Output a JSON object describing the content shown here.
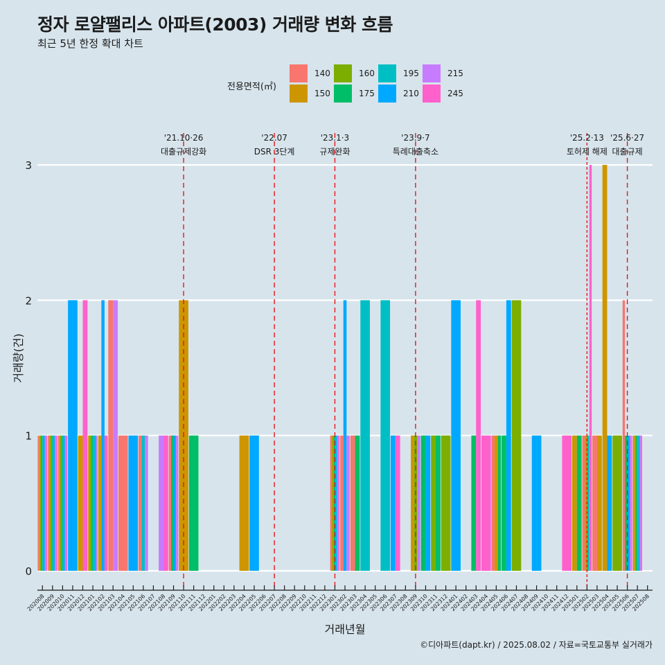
{
  "title": "정자 로얄팰리스 아파트(2003) 거래량 변화 흐름",
  "subtitle": "최근 5년 한정 확대 차트",
  "caption": "©디아파트(dapt.kr) / 2025.08.02 / 자료=국토교통부 실거래가",
  "legend": {
    "title": "전용면적(㎡)",
    "items": [
      {
        "key": "140",
        "color": "#F8766D"
      },
      {
        "key": "150",
        "color": "#CD9600"
      },
      {
        "key": "160",
        "color": "#7CAE00"
      },
      {
        "key": "175",
        "color": "#00BE67"
      },
      {
        "key": "195",
        "color": "#00BFC4"
      },
      {
        "key": "210",
        "color": "#00A9FF"
      },
      {
        "key": "215",
        "color": "#C77CFF"
      },
      {
        "key": "245",
        "color": "#FF61CC"
      }
    ]
  },
  "chart_data": {
    "type": "bar",
    "xlabel": "거래년월",
    "ylabel": "거래량(건)",
    "ylim": [
      0,
      3
    ],
    "yticks": [
      0,
      1,
      2,
      3
    ],
    "grid": true,
    "legend_position": "top",
    "categories": [
      "202008",
      "202009",
      "202010",
      "202011",
      "202012",
      "202101",
      "202102",
      "202103",
      "202104",
      "202105",
      "202106",
      "202107",
      "202108",
      "202109",
      "202110",
      "202111",
      "202112",
      "202201",
      "202202",
      "202203",
      "202204",
      "202205",
      "202206",
      "202207",
      "202208",
      "202209",
      "202210",
      "202211",
      "202212",
      "202301",
      "202302",
      "202303",
      "202304",
      "202305",
      "202306",
      "202307",
      "202308",
      "202309",
      "202310",
      "202311",
      "202312",
      "202401",
      "202402",
      "202403",
      "202404",
      "202405",
      "202406",
      "202407",
      "202408",
      "202409",
      "202410",
      "202411",
      "202412",
      "202501",
      "202502",
      "202503",
      "202504",
      "202505",
      "202506",
      "202507",
      "202508"
    ],
    "bars": [
      {
        "month": "202008",
        "values": [
          [
            "140",
            1
          ],
          [
            "150",
            1
          ],
          [
            "160",
            1
          ],
          [
            "175",
            1
          ],
          [
            "195",
            1
          ],
          [
            "210",
            1
          ],
          [
            "215",
            1
          ],
          [
            "245",
            1
          ]
        ]
      },
      {
        "month": "202009",
        "values": [
          [
            "140",
            1
          ],
          [
            "150",
            1
          ],
          [
            "160",
            1
          ],
          [
            "175",
            1
          ],
          [
            "195",
            1
          ],
          [
            "210",
            1
          ],
          [
            "215",
            1
          ],
          [
            "245",
            1
          ]
        ]
      },
      {
        "month": "202010",
        "values": [
          [
            "140",
            1
          ],
          [
            "150",
            1
          ],
          [
            "160",
            1
          ],
          [
            "175",
            1
          ],
          [
            "195",
            1
          ],
          [
            "210",
            1
          ],
          [
            "215",
            1
          ],
          [
            "245",
            1
          ]
        ]
      },
      {
        "month": "202011",
        "values": [
          [
            "210",
            2
          ]
        ]
      },
      {
        "month": "202012",
        "values": [
          [
            "150",
            1
          ],
          [
            "245",
            2
          ]
        ]
      },
      {
        "month": "202101",
        "values": [
          [
            "150",
            1
          ],
          [
            "160",
            1
          ],
          [
            "175",
            1
          ],
          [
            "195",
            1
          ],
          [
            "210",
            1
          ],
          [
            "215",
            1
          ]
        ]
      },
      {
        "month": "202102",
        "values": [
          [
            "150",
            1
          ],
          [
            "210",
            2
          ],
          [
            "245",
            1
          ]
        ]
      },
      {
        "month": "202103",
        "values": [
          [
            "140",
            2
          ],
          [
            "215",
            2
          ]
        ]
      },
      {
        "month": "202104",
        "values": [
          [
            "140",
            1
          ]
        ]
      },
      {
        "month": "202105",
        "values": [
          [
            "210",
            1
          ]
        ]
      },
      {
        "month": "202106",
        "values": [
          [
            "140",
            1
          ],
          [
            "195",
            1
          ],
          [
            "215",
            1
          ]
        ]
      },
      {
        "month": "202108",
        "values": [
          [
            "215",
            1
          ],
          [
            "245",
            1
          ]
        ]
      },
      {
        "month": "202109",
        "values": [
          [
            "140",
            1
          ],
          [
            "175",
            1
          ],
          [
            "210",
            1
          ],
          [
            "215",
            1
          ]
        ]
      },
      {
        "month": "202110",
        "values": [
          [
            "150",
            2
          ]
        ]
      },
      {
        "month": "202111",
        "values": [
          [
            "175",
            1
          ]
        ]
      },
      {
        "month": "202204",
        "values": [
          [
            "150",
            1
          ]
        ]
      },
      {
        "month": "202205",
        "values": [
          [
            "210",
            1
          ]
        ]
      },
      {
        "month": "202301",
        "values": [
          [
            "140",
            1
          ],
          [
            "150",
            1
          ],
          [
            "160",
            1
          ],
          [
            "175",
            1
          ],
          [
            "195",
            1
          ],
          [
            "210",
            1
          ],
          [
            "215",
            1
          ],
          [
            "245",
            1
          ]
        ]
      },
      {
        "month": "202302",
        "values": [
          [
            "140",
            1
          ],
          [
            "210",
            2
          ],
          [
            "215",
            1
          ]
        ]
      },
      {
        "month": "202303",
        "values": [
          [
            "140",
            1
          ],
          [
            "175",
            1
          ]
        ]
      },
      {
        "month": "202304",
        "values": [
          [
            "195",
            2
          ]
        ]
      },
      {
        "month": "202306",
        "values": [
          [
            "195",
            2
          ]
        ]
      },
      {
        "month": "202307",
        "values": [
          [
            "210",
            1
          ],
          [
            "245",
            1
          ]
        ]
      },
      {
        "month": "202309",
        "values": [
          [
            "150",
            1
          ],
          [
            "160",
            1
          ],
          [
            "215",
            1
          ]
        ]
      },
      {
        "month": "202310",
        "values": [
          [
            "175",
            1
          ],
          [
            "210",
            1
          ]
        ]
      },
      {
        "month": "202311",
        "values": [
          [
            "160",
            1
          ],
          [
            "175",
            1
          ]
        ]
      },
      {
        "month": "202312",
        "values": [
          [
            "160",
            1
          ]
        ]
      },
      {
        "month": "202401",
        "values": [
          [
            "210",
            2
          ]
        ]
      },
      {
        "month": "202403",
        "values": [
          [
            "175",
            1
          ],
          [
            "245",
            2
          ]
        ]
      },
      {
        "month": "202404",
        "values": [
          [
            "245",
            1
          ]
        ]
      },
      {
        "month": "202405",
        "values": [
          [
            "140",
            1
          ],
          [
            "150",
            1
          ],
          [
            "175",
            1
          ]
        ]
      },
      {
        "month": "202406",
        "values": [
          [
            "175",
            1
          ],
          [
            "210",
            2
          ]
        ]
      },
      {
        "month": "202407",
        "values": [
          [
            "160",
            2
          ]
        ]
      },
      {
        "month": "202409",
        "values": [
          [
            "210",
            1
          ]
        ]
      },
      {
        "month": "202412",
        "values": [
          [
            "245",
            1
          ]
        ]
      },
      {
        "month": "202501",
        "values": [
          [
            "150",
            1
          ],
          [
            "175",
            1
          ]
        ]
      },
      {
        "month": "202502",
        "values": [
          [
            "140",
            1
          ],
          [
            "150",
            1
          ],
          [
            "195",
            1
          ],
          [
            "245",
            3
          ]
        ]
      },
      {
        "month": "202503",
        "values": [
          [
            "140",
            1
          ],
          [
            "150",
            1
          ]
        ]
      },
      {
        "month": "202504",
        "values": [
          [
            "150",
            3
          ],
          [
            "210",
            1
          ]
        ]
      },
      {
        "month": "202505",
        "values": [
          [
            "160",
            1
          ]
        ]
      },
      {
        "month": "202506",
        "values": [
          [
            "140",
            2
          ],
          [
            "175",
            1
          ],
          [
            "210",
            1
          ],
          [
            "215",
            1
          ]
        ]
      },
      {
        "month": "202507",
        "values": [
          [
            "140",
            1
          ],
          [
            "150",
            1
          ],
          [
            "160",
            1
          ],
          [
            "175",
            1
          ],
          [
            "195",
            1
          ],
          [
            "210",
            1
          ],
          [
            "215",
            1
          ],
          [
            "245",
            1
          ]
        ]
      }
    ],
    "events": [
      {
        "month": "202110",
        "line1": "'21.10·26",
        "line2": "대출규제강화",
        "dash": "long"
      },
      {
        "month": "202207",
        "line1": "'22.07",
        "line2": "DSR 3단계",
        "dash": "long"
      },
      {
        "month": "202301",
        "line1": "'23.1·3",
        "line2": "규제완화",
        "dash": "long"
      },
      {
        "month": "202309",
        "line1": "'23.9·7",
        "line2": "특례대출축소",
        "dash": "long"
      },
      {
        "month": "202502",
        "line1": "'25.2·13",
        "line2": "토허제 해제",
        "dash": "short"
      },
      {
        "month": "202506",
        "line1": "'25.6·27",
        "line2": "대출규제",
        "dash": "long"
      }
    ]
  }
}
